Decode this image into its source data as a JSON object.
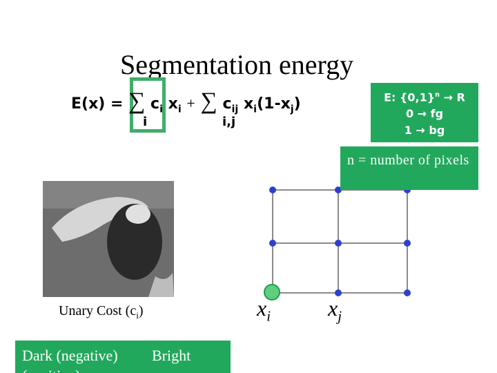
{
  "title": "Segmentation energy",
  "formula": {
    "lhs": "E(x) =",
    "sum1": "∑",
    "c1": "c",
    "c1_sub": "i",
    "x1": "x",
    "x1_sub": "i",
    "plus": "+",
    "sum2": "∑",
    "c2": "c",
    "c2_sub": "ij",
    "x2": "x",
    "x2_sub": "i",
    "paren": "(1-x",
    "paren_sub": "j",
    "close": ")",
    "sum1_index": "i",
    "sum2_index": "i,j"
  },
  "definition_box": {
    "line1": "E: {0,1}",
    "line1_sup": "n",
    "line1_end": "→ R",
    "line2": "0 → fg",
    "line3": "1 → bg"
  },
  "note_box": "n = number of pixels",
  "image_caption": {
    "text": "Unary Cost (c",
    "sub": "i",
    "close": ")"
  },
  "legend_box": {
    "dark": "Dark (negative)",
    "bright": "Bright",
    "positive": "(positive)"
  },
  "graph": {
    "xi": "x",
    "xi_sub": "i",
    "xj": "x",
    "xj_sub": "j"
  }
}
